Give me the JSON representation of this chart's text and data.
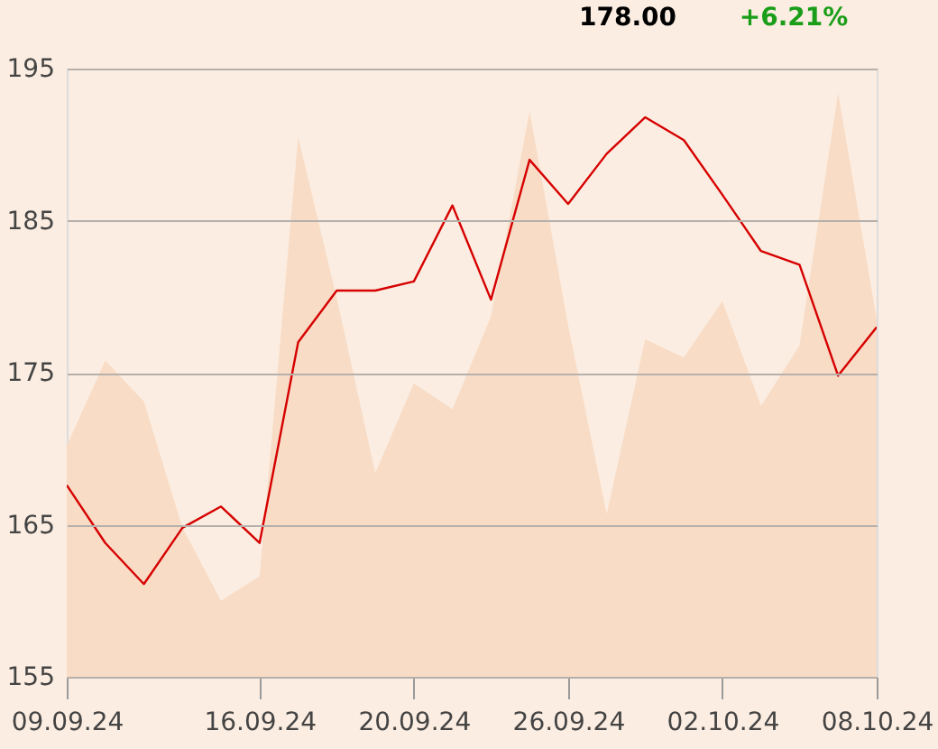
{
  "chart_data": {
    "type": "line",
    "annotations": [
      "178.00",
      "+6.21%"
    ],
    "categories": [
      "09.09.24",
      null,
      null,
      null,
      null,
      "16.09.24",
      null,
      null,
      null,
      "20.09.24",
      null,
      null,
      null,
      "26.09.24",
      null,
      null,
      null,
      "02.10.24",
      null,
      null,
      null,
      "08.10.24"
    ],
    "series": [
      {
        "type": "area",
        "color": "#f8dcc6",
        "values": [
          170.2,
          175.8,
          173.1,
          164.8,
          160.0,
          161.6,
          190.5,
          179.9,
          168.4,
          174.3,
          172.6,
          178.7,
          192.2,
          178.1,
          165.7,
          177.2,
          176.0,
          179.7,
          172.8,
          176.8,
          193.4,
          178.5
        ]
      },
      {
        "color": "#d60000",
        "values": [
          167.6,
          163.8,
          161.1,
          164.8,
          166.2,
          163.8,
          177.0,
          180.4,
          180.4,
          181.0,
          186.0,
          179.8,
          189.0,
          186.1,
          189.4,
          191.8,
          190.3,
          186.7,
          183.0,
          182.1,
          174.8,
          178.0
        ]
      }
    ],
    "ylim": [
      155,
      195
    ],
    "yticks": [
      155,
      165,
      175,
      185,
      195
    ],
    "grid": "y"
  }
}
